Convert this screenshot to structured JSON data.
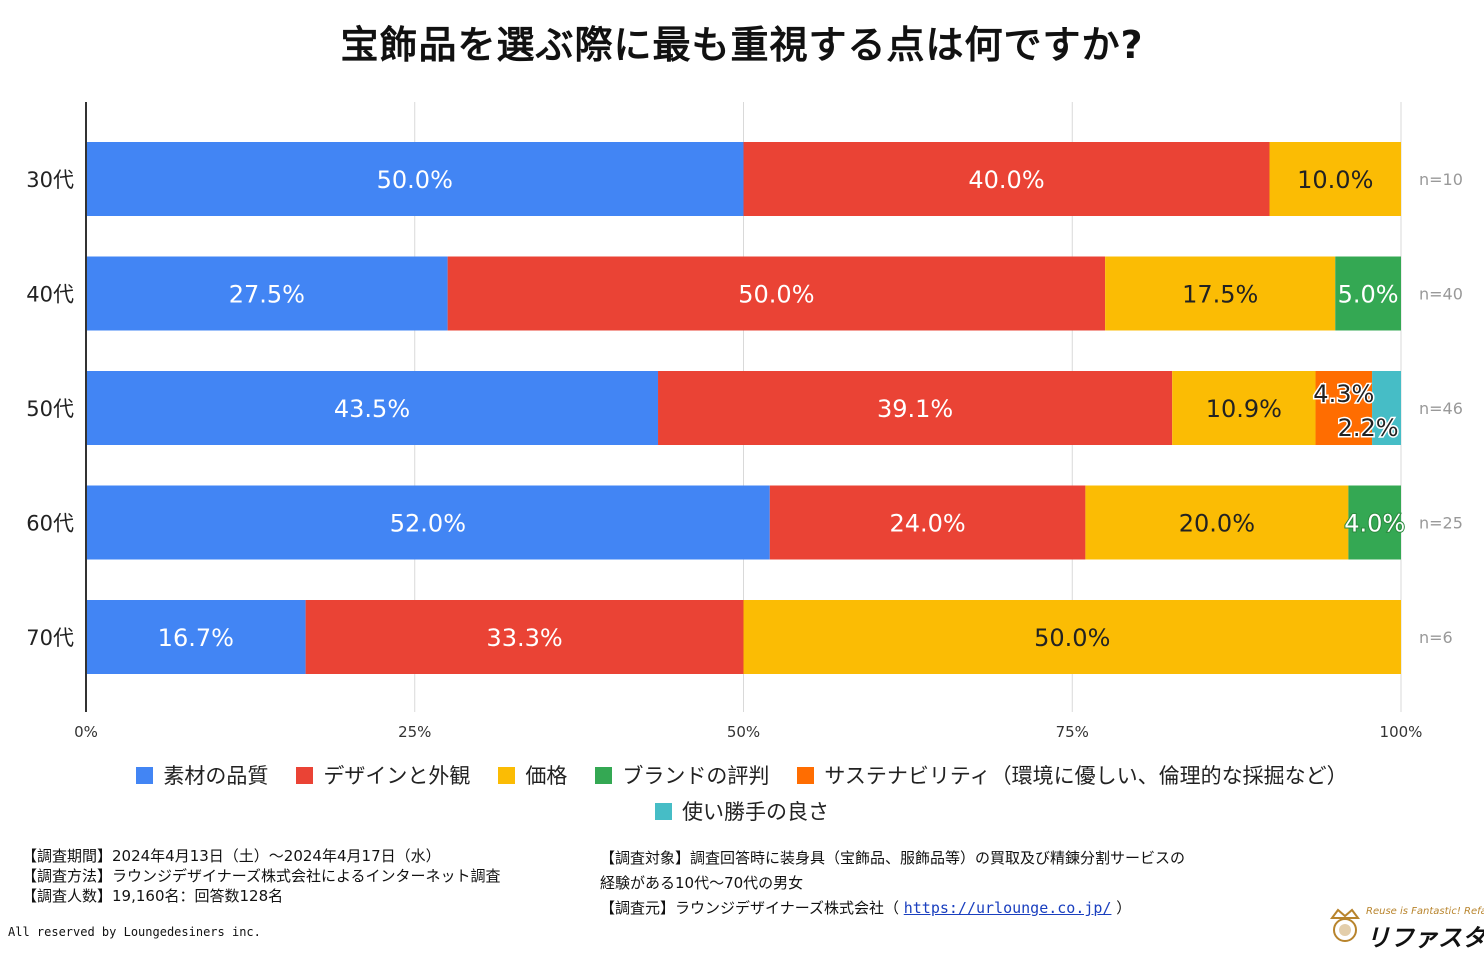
{
  "title": "宝飾品を選ぶ際に最も重視する点は何ですか?",
  "colors": {
    "素材の品質": "#4285F4",
    "デザインと外観": "#EA4335",
    "価格": "#FBBC04",
    "ブランドの評判": "#34A853",
    "サステナビリティ": "#FF6D01",
    "使い勝手の良さ": "#46BDC6"
  },
  "legend": [
    {
      "label": "素材の品質",
      "color": "#4285F4"
    },
    {
      "label": "デザインと外観",
      "color": "#EA4335"
    },
    {
      "label": "価格",
      "color": "#FBBC04"
    },
    {
      "label": "ブランドの評判",
      "color": "#34A853"
    },
    {
      "label": "サステナビリティ（環境に優しい、倫理的な採掘など）",
      "color": "#FF6D01"
    },
    {
      "label": "使い勝手の良さ",
      "color": "#46BDC6"
    }
  ],
  "chart_data": {
    "type": "bar",
    "orientation": "horizontal",
    "stacked": "percent",
    "title": "宝飾品を選ぶ際に最も重視する点は何ですか?",
    "categories": [
      "30代",
      "40代",
      "50代",
      "60代",
      "70代"
    ],
    "n_labels": [
      "n=10",
      "n=40",
      "n=46",
      "n=25",
      "n=6"
    ],
    "xlim": [
      0,
      100
    ],
    "x_ticks": [
      "0%",
      "25%",
      "50%",
      "75%",
      "100%"
    ],
    "grid": true,
    "series": [
      {
        "name": "素材の品質",
        "values": [
          50.0,
          27.5,
          43.5,
          52.0,
          16.7
        ],
        "labels": [
          "50.0%",
          "27.5%",
          "43.5%",
          "52.0%",
          "16.7%"
        ]
      },
      {
        "name": "デザインと外観",
        "values": [
          40.0,
          50.0,
          39.1,
          24.0,
          33.3
        ],
        "labels": [
          "40.0%",
          "50.0%",
          "39.1%",
          "24.0%",
          "33.3%"
        ]
      },
      {
        "name": "価格",
        "values": [
          10.0,
          17.5,
          10.9,
          20.0,
          50.0
        ],
        "labels": [
          "10.0%",
          "17.5%",
          "10.9%",
          "20.0%",
          "50.0%"
        ]
      },
      {
        "name": "ブランドの評判",
        "values": [
          0,
          5.0,
          0,
          4.0,
          0
        ],
        "labels": [
          "",
          "5.0%",
          "",
          "4.0%",
          ""
        ]
      },
      {
        "name": "サステナビリティ",
        "values": [
          0,
          0,
          4.3,
          0,
          0
        ],
        "labels": [
          "",
          "",
          "4.3%",
          "",
          ""
        ]
      },
      {
        "name": "使い勝手の良さ",
        "values": [
          0,
          0,
          2.2,
          0,
          0
        ],
        "labels": [
          "",
          "",
          "2.2%",
          "",
          ""
        ]
      }
    ]
  },
  "footer_left": [
    "【調査期間】2024年4月13日（土）～2024年4月17日（水）",
    "【調査方法】ラウンジデザイナーズ株式会社によるインターネット調査",
    "【調査人数】19,160名：回答数128名"
  ],
  "footer_right": {
    "line1": "【調査対象】調査回答時に装身具（宝飾品、服飾品等）の買取及び精錬分割サービスの",
    "line2": "経験がある10代～70代の男女",
    "source_prefix": "【調査元】ラウンジデザイナーズ株式会社（ ",
    "source_url": "https://urlounge.co.jp/",
    "source_suffix": " ）"
  },
  "copyright": "All reserved by Loungedesiners inc.",
  "logo": {
    "tagline": "Reuse is Fantastic! Refasta",
    "name": "リファスタ"
  }
}
